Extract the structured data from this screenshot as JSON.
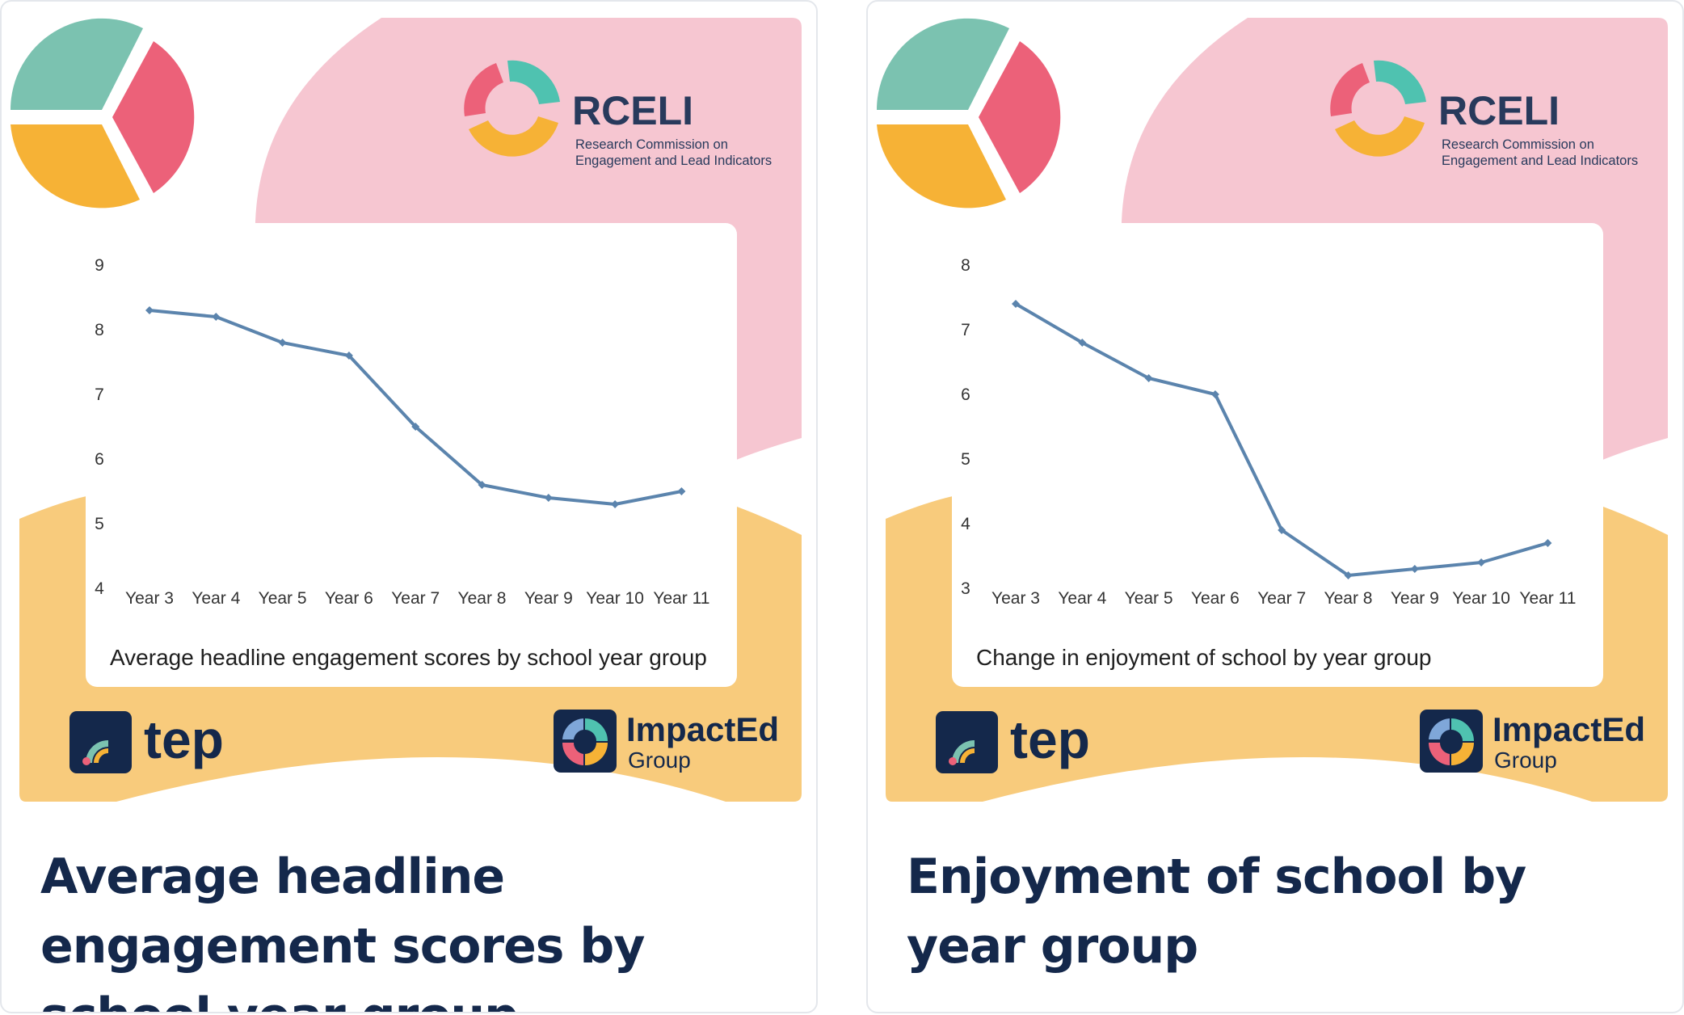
{
  "cards": [
    {
      "logos": {
        "rceli_name": "RCELI",
        "rceli_sub1": "Research Commission on",
        "rceli_sub2": "Engagement and Lead Indicators",
        "tep_name": "tep",
        "impacted_name": "ImpactEd",
        "impacted_sub": "Group"
      },
      "caption": "Average headline engagement scores by school year group",
      "title": "Average headline engagement scores by school year group"
    },
    {
      "logos": {
        "rceli_name": "RCELI",
        "rceli_sub1": "Research Commission on",
        "rceli_sub2": "Engagement and Lead Indicators",
        "tep_name": "tep",
        "impacted_name": "ImpactEd",
        "impacted_sub": "Group"
      },
      "caption": "Change in enjoyment of school by year group",
      "title": "Enjoyment of school by year group"
    }
  ],
  "colors": {
    "line": "#5b84ad",
    "teal": "#7bc2b0",
    "pink": "#ec6179",
    "orange": "#f6b236",
    "bg_pink": "#f6c6d1",
    "bg_yellow": "#f8cb7c",
    "navy": "#14284b"
  },
  "chart_data": [
    {
      "type": "line",
      "categories": [
        "Year 3",
        "Year 4",
        "Year 5",
        "Year 6",
        "Year 7",
        "Year 8",
        "Year 9",
        "Year 10",
        "Year 11"
      ],
      "values": [
        8.3,
        8.2,
        7.8,
        7.6,
        6.5,
        5.6,
        5.4,
        5.3,
        5.5
      ],
      "ylim": [
        4,
        9
      ],
      "yticks": [
        "4",
        "5",
        "6",
        "7",
        "8",
        "9"
      ],
      "title": "Average headline engagement scores by school year group",
      "grid": false
    },
    {
      "type": "line",
      "categories": [
        "Year 3",
        "Year 4",
        "Year 5",
        "Year 6",
        "Year 7",
        "Year 8",
        "Year 9",
        "Year 10",
        "Year 11"
      ],
      "values": [
        7.4,
        6.8,
        6.25,
        6.0,
        3.9,
        3.2,
        3.3,
        3.4,
        3.7
      ],
      "ylim": [
        3,
        8
      ],
      "yticks": [
        "3",
        "4",
        "5",
        "6",
        "7",
        "8"
      ],
      "title": "Change in enjoyment of school by year group",
      "grid": false
    }
  ]
}
